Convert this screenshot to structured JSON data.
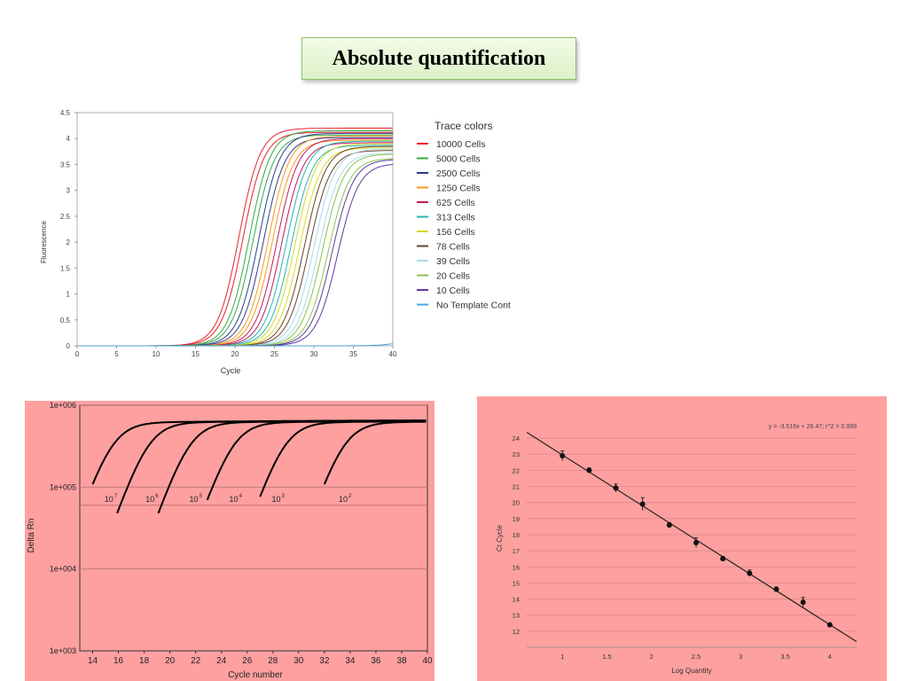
{
  "slide": {
    "title": "Absolute quantification"
  },
  "chart_data": [
    {
      "type": "line",
      "xlabel": "Cycle",
      "ylabel": "Fluorescence",
      "xlim": [
        0,
        40
      ],
      "ylim": [
        0,
        4.5
      ],
      "x_ticks": [
        "0",
        "5",
        "10",
        "15",
        "20",
        "25",
        "30",
        "35",
        "40"
      ],
      "y_ticks": [
        "0",
        "0.5",
        "1",
        "1.5",
        "2",
        "2.5",
        "3",
        "3.5",
        "4",
        "4.5"
      ],
      "legend_title": "Trace colors",
      "legend_position": "right",
      "grid": false,
      "series": [
        {
          "name": "10000 Cells",
          "color": "#e8202a",
          "midpoints": [
            20.5,
            21.0
          ],
          "plateau": 4.2
        },
        {
          "name": "5000 Cells",
          "color": "#34a845",
          "midpoints": [
            21.8,
            22.3
          ],
          "plateau": 4.15
        },
        {
          "name": "2500 Cells",
          "color": "#2b3d8f",
          "midpoints": [
            23.0,
            23.6
          ],
          "plateau": 4.1
        },
        {
          "name": "1250 Cells",
          "color": "#f39a1e",
          "midpoints": [
            24.2,
            24.7
          ],
          "plateau": 4.05
        },
        {
          "name": "625 Cells",
          "color": "#c2185b",
          "midpoints": [
            25.3,
            25.9
          ],
          "plateau": 4.0
        },
        {
          "name": "313 Cells",
          "color": "#26b5b5",
          "midpoints": [
            26.5,
            27.1
          ],
          "plateau": 3.95
        },
        {
          "name": "156 Cells",
          "color": "#d7d92a",
          "midpoints": [
            27.6,
            28.2
          ],
          "plateau": 3.9
        },
        {
          "name": "78 Cells",
          "color": "#6b4226",
          "midpoints": [
            28.8,
            29.4
          ],
          "plateau": 3.85
        },
        {
          "name": "39 Cells",
          "color": "#a9d8ee",
          "midpoints": [
            30.0,
            30.6
          ],
          "plateau": 3.8
        },
        {
          "name": "20 Cells",
          "color": "#8bc34a",
          "midpoints": [
            31.1,
            31.8
          ],
          "plateau": 3.7
        },
        {
          "name": "10 Cells",
          "color": "#5e3a9e",
          "midpoints": [
            32.3,
            33.0
          ],
          "plateau": 3.6
        },
        {
          "name": "No Template Cont",
          "color": "#4aa3d8",
          "midpoints": [],
          "plateau": 0.2
        }
      ]
    },
    {
      "type": "line",
      "xlabel": "Cycle number",
      "ylabel": "Delta Rn",
      "xlim": [
        13,
        40
      ],
      "ylim": [
        1000,
        1000000
      ],
      "y_scale": "log",
      "x_ticks": [
        "14",
        "16",
        "18",
        "20",
        "22",
        "24",
        "26",
        "28",
        "30",
        "32",
        "34",
        "36",
        "38",
        "40"
      ],
      "y_ticks": [
        "1e+003",
        "1e+004",
        "1e+005",
        "1e+006"
      ],
      "background": "#ffa0a0",
      "threshold_lines": [
        60000,
        100000,
        10000
      ],
      "labels": [
        {
          "base": "10",
          "exp": "7",
          "x": 15.6
        },
        {
          "base": "10",
          "exp": "6",
          "x": 18.8
        },
        {
          "base": "10",
          "exp": "5",
          "x": 22.2
        },
        {
          "base": "10",
          "exp": "4",
          "x": 25.3
        },
        {
          "base": "10",
          "exp": "3",
          "x": 28.6
        },
        {
          "base": "10",
          "exp": "2",
          "x": 33.8
        }
      ],
      "series": [
        {
          "start": 14.0,
          "shift": 0
        },
        {
          "start": 15.9,
          "shift": 2.8
        },
        {
          "start": 19.1,
          "shift": 6.0
        },
        {
          "start": 22.9,
          "shift": 9.4
        },
        {
          "start": 27.0,
          "shift": 13.4
        },
        {
          "start": 32.0,
          "shift": 18.0
        }
      ]
    },
    {
      "type": "scatter",
      "xlabel": "Log Quantity",
      "ylabel": "Ct Cycle",
      "xlim": [
        0.6,
        4.3
      ],
      "ylim": [
        11,
        24.5
      ],
      "x_ticks": [
        "1",
        "1.5",
        "2",
        "2.5",
        "3",
        "3.5",
        "4"
      ],
      "y_ticks": [
        "12",
        "13",
        "14",
        "15",
        "16",
        "17",
        "18",
        "19",
        "20",
        "21",
        "22",
        "23",
        "24"
      ],
      "background": "#ffa0a0",
      "equation": "y = -3.516x + 26.47; r^2 = 0.999",
      "fit": {
        "slope": -3.516,
        "intercept": 26.47
      },
      "points": [
        {
          "x": 1.0,
          "y": 22.9,
          "err": 0.3
        },
        {
          "x": 1.3,
          "y": 22.0,
          "err": 0.15
        },
        {
          "x": 1.6,
          "y": 20.9,
          "err": 0.25
        },
        {
          "x": 1.9,
          "y": 19.9,
          "err": 0.4
        },
        {
          "x": 2.2,
          "y": 18.6,
          "err": 0.15
        },
        {
          "x": 2.5,
          "y": 17.5,
          "err": 0.3
        },
        {
          "x": 2.8,
          "y": 16.5,
          "err": 0.15
        },
        {
          "x": 3.1,
          "y": 15.6,
          "err": 0.2
        },
        {
          "x": 3.4,
          "y": 14.6,
          "err": 0.15
        },
        {
          "x": 3.7,
          "y": 13.8,
          "err": 0.3
        },
        {
          "x": 4.0,
          "y": 12.4,
          "err": 0.1
        }
      ]
    }
  ]
}
